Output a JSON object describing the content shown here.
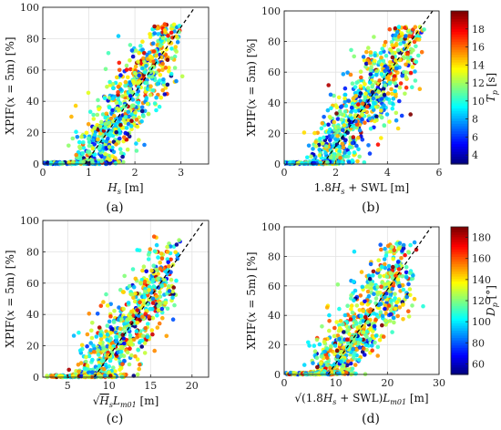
{
  "figure": {
    "panel_labels": [
      "(a)",
      "(b)",
      "(c)",
      "(d)"
    ]
  },
  "chart_data": [
    {
      "panel": "(a)",
      "type": "scatter",
      "title": "",
      "xlabel": "H_s [m]",
      "ylabel": "XPIF(x = 5m) [%]",
      "xlim": [
        0,
        3.6
      ],
      "ylim": [
        0,
        100
      ],
      "xticks": [
        0,
        1,
        2,
        3
      ],
      "yticks": [
        0,
        20,
        40,
        60,
        80,
        100
      ],
      "grid": true,
      "color_variable": "T_p",
      "trend_line": {
        "style": "dashed",
        "x": [
          0.92,
          3.3
        ],
        "y": [
          0,
          100
        ]
      },
      "cluster": {
        "x_min": 0.85,
        "x_max": 3.3,
        "spread": 0.28,
        "zero_fraction": 0.12,
        "n": 900
      }
    },
    {
      "panel": "(b)",
      "type": "scatter",
      "title": "",
      "xlabel": "1.8H_s + SWL [m]",
      "ylabel": "XPIF(x = 5m) [%]",
      "xlim": [
        0,
        6
      ],
      "ylim": [
        0,
        100
      ],
      "xticks": [
        0,
        2,
        4,
        6
      ],
      "yticks": [
        0,
        20,
        40,
        60,
        80,
        100
      ],
      "grid": true,
      "color_variable": "T_p",
      "trend_line": {
        "style": "dashed",
        "x": [
          1.5,
          5.75
        ],
        "y": [
          0,
          100
        ]
      },
      "cluster": {
        "x_min": 1.3,
        "x_max": 5.8,
        "spread": 0.5,
        "zero_fraction": 0.12,
        "n": 900
      },
      "colorbar": {
        "label": "T_p [s]",
        "min": 3,
        "max": 20,
        "ticks": [
          4,
          6,
          8,
          10,
          12,
          14,
          16,
          18
        ],
        "colormap": "jet"
      }
    },
    {
      "panel": "(c)",
      "type": "scatter",
      "title": "",
      "xlabel": "√(H_s L_m01) [m]",
      "ylabel": "XPIF(x = 5m) [%]",
      "xlim": [
        2,
        22
      ],
      "ylim": [
        0,
        100
      ],
      "xticks": [
        5,
        10,
        15,
        20
      ],
      "yticks": [
        0,
        20,
        40,
        60,
        80,
        100
      ],
      "grid": true,
      "color_variable": "D_p",
      "trend_line": {
        "style": "dashed",
        "x": [
          8.2,
          21.5
        ],
        "y": [
          0,
          100
        ]
      },
      "cluster": {
        "x_min": 7,
        "x_max": 20,
        "spread": 1.8,
        "zero_fraction": 0.12,
        "n": 900
      }
    },
    {
      "panel": "(d)",
      "type": "scatter",
      "title": "",
      "xlabel": "√((1.8H_s + SWL) L_m01) [m]",
      "ylabel": "XPIF(x = 5m) [%]",
      "xlim": [
        0,
        30
      ],
      "ylim": [
        0,
        100
      ],
      "xticks": [
        0,
        10,
        20,
        30
      ],
      "yticks": [
        0,
        20,
        40,
        60,
        80,
        100
      ],
      "grid": true,
      "color_variable": "D_p",
      "trend_line": {
        "style": "dashed",
        "x": [
          8.5,
          28.5
        ],
        "y": [
          0,
          100
        ]
      },
      "cluster": {
        "x_min": 7,
        "x_max": 27,
        "spread": 2.8,
        "zero_fraction": 0.12,
        "n": 900
      },
      "colorbar": {
        "label": "D_p [°]",
        "min": 50,
        "max": 190,
        "ticks": [
          60,
          80,
          100,
          120,
          140,
          160,
          180
        ],
        "colormap": "jet"
      }
    }
  ]
}
